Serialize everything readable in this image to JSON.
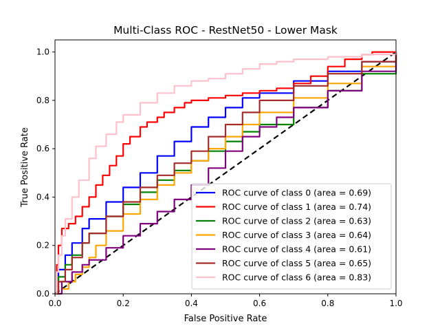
{
  "chart_data": {
    "type": "line",
    "title": "Multi-Class ROC - RestNet50 - Lower Mask",
    "xlabel": "False Positive Rate",
    "ylabel": "True Positive Rate",
    "xlim": [
      0,
      1
    ],
    "ylim": [
      0,
      1.05
    ],
    "x_ticks": [
      "0.0",
      "0.2",
      "0.4",
      "0.6",
      "0.8",
      "1.0"
    ],
    "y_ticks": [
      "0.0",
      "0.2",
      "0.4",
      "0.6",
      "0.8",
      "1.0"
    ],
    "grid": false,
    "legend_position": "lower-right",
    "diagonal": {
      "x": [
        0,
        1
      ],
      "y": [
        0,
        1
      ],
      "color": "#000000",
      "style": "dashed"
    },
    "series": [
      {
        "name": "ROC curve of class 0 (area = 0.69)",
        "color": "#0000ff",
        "x": [
          0,
          0.01,
          0.03,
          0.05,
          0.08,
          0.1,
          0.15,
          0.2,
          0.25,
          0.3,
          0.35,
          0.4,
          0.45,
          0.5,
          0.55,
          0.6,
          0.7,
          0.8,
          0.9,
          1.0
        ],
        "y": [
          0,
          0.1,
          0.16,
          0.21,
          0.27,
          0.31,
          0.38,
          0.44,
          0.5,
          0.57,
          0.63,
          0.69,
          0.73,
          0.77,
          0.81,
          0.83,
          0.88,
          0.92,
          0.96,
          1.0
        ]
      },
      {
        "name": "ROC curve of class 1 (area = 0.74)",
        "color": "#ff0000",
        "x": [
          0,
          0.005,
          0.01,
          0.02,
          0.04,
          0.06,
          0.08,
          0.1,
          0.12,
          0.14,
          0.16,
          0.18,
          0.2,
          0.22,
          0.25,
          0.27,
          0.3,
          0.32,
          0.35,
          0.38,
          0.4,
          0.45,
          0.5,
          0.55,
          0.6,
          0.65,
          0.7,
          0.75,
          0.8,
          0.85,
          0.9,
          0.93,
          1.0
        ],
        "y": [
          0,
          0.12,
          0.2,
          0.27,
          0.29,
          0.32,
          0.36,
          0.4,
          0.45,
          0.49,
          0.53,
          0.57,
          0.62,
          0.65,
          0.69,
          0.71,
          0.73,
          0.75,
          0.77,
          0.79,
          0.8,
          0.81,
          0.82,
          0.83,
          0.84,
          0.85,
          0.87,
          0.9,
          0.94,
          0.97,
          0.99,
          1.0,
          1.0
        ]
      },
      {
        "name": "ROC curve of class 2 (area = 0.63)",
        "color": "#008000",
        "x": [
          0,
          0.01,
          0.03,
          0.05,
          0.08,
          0.1,
          0.15,
          0.2,
          0.25,
          0.3,
          0.35,
          0.4,
          0.45,
          0.5,
          0.55,
          0.6,
          0.7,
          0.8,
          0.9,
          1.0
        ],
        "y": [
          0,
          0.07,
          0.12,
          0.16,
          0.21,
          0.25,
          0.32,
          0.37,
          0.42,
          0.47,
          0.51,
          0.55,
          0.59,
          0.63,
          0.67,
          0.7,
          0.77,
          0.84,
          0.91,
          1.0
        ]
      },
      {
        "name": "ROC curve of class 3 (area = 0.64)",
        "color": "#ffa500",
        "x": [
          0,
          0.02,
          0.04,
          0.06,
          0.08,
          0.1,
          0.12,
          0.15,
          0.2,
          0.25,
          0.3,
          0.35,
          0.4,
          0.45,
          0.5,
          0.55,
          0.6,
          0.7,
          0.8,
          0.9,
          1.0
        ],
        "y": [
          0,
          0.02,
          0.05,
          0.08,
          0.11,
          0.15,
          0.2,
          0.26,
          0.33,
          0.39,
          0.45,
          0.5,
          0.55,
          0.6,
          0.65,
          0.7,
          0.75,
          0.81,
          0.87,
          0.94,
          1.0
        ]
      },
      {
        "name": "ROC curve of class 4 (area = 0.61)",
        "color": "#800080",
        "x": [
          0,
          0.02,
          0.05,
          0.08,
          0.1,
          0.15,
          0.2,
          0.25,
          0.3,
          0.35,
          0.4,
          0.45,
          0.5,
          0.55,
          0.6,
          0.65,
          0.7,
          0.8,
          0.9,
          1.0
        ],
        "y": [
          0,
          0.05,
          0.09,
          0.12,
          0.14,
          0.19,
          0.24,
          0.29,
          0.34,
          0.39,
          0.45,
          0.52,
          0.59,
          0.65,
          0.69,
          0.73,
          0.77,
          0.84,
          0.92,
          1.0
        ]
      },
      {
        "name": "ROC curve of class 5 (area = 0.65)",
        "color": "#a52a2a",
        "x": [
          0,
          0.01,
          0.03,
          0.05,
          0.08,
          0.1,
          0.15,
          0.2,
          0.25,
          0.3,
          0.35,
          0.4,
          0.45,
          0.5,
          0.55,
          0.6,
          0.7,
          0.8,
          0.9,
          1.0
        ],
        "y": [
          0,
          0.05,
          0.1,
          0.15,
          0.21,
          0.25,
          0.32,
          0.38,
          0.44,
          0.49,
          0.54,
          0.59,
          0.65,
          0.7,
          0.75,
          0.8,
          0.86,
          0.91,
          0.96,
          1.0
        ]
      },
      {
        "name": "ROC curve of class 6 (area = 0.83)",
        "color": "#ffc0cb",
        "x": [
          0,
          0.005,
          0.01,
          0.02,
          0.03,
          0.05,
          0.07,
          0.1,
          0.12,
          0.15,
          0.18,
          0.2,
          0.25,
          0.3,
          0.35,
          0.4,
          0.45,
          0.5,
          0.55,
          0.6,
          0.65,
          0.7,
          0.8,
          0.9,
          1.0
        ],
        "y": [
          0,
          0.09,
          0.16,
          0.24,
          0.31,
          0.4,
          0.47,
          0.56,
          0.61,
          0.66,
          0.71,
          0.74,
          0.79,
          0.83,
          0.86,
          0.88,
          0.89,
          0.91,
          0.93,
          0.95,
          0.96,
          0.97,
          0.98,
          0.99,
          1.0
        ]
      }
    ]
  }
}
